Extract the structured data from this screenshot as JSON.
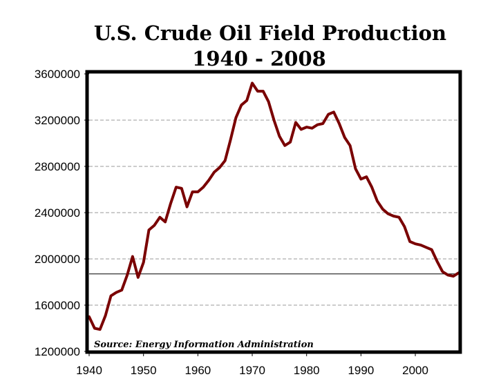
{
  "chart_data": {
    "type": "line",
    "title": "U.S. Crude Oil Field Production",
    "subtitle": "1940 - 2008",
    "xlabel": "",
    "ylabel": "",
    "xlim": [
      1940,
      2008
    ],
    "ylim": [
      1200000,
      3600000
    ],
    "x_ticks": [
      1940,
      1950,
      1960,
      1970,
      1980,
      1990,
      2000
    ],
    "x_tick_labels": [
      "1940",
      "1950",
      "1960",
      "1970",
      "1980",
      "1990",
      "2000"
    ],
    "y_ticks": [
      1200000,
      1600000,
      2000000,
      2400000,
      2800000,
      3200000,
      3600000
    ],
    "y_tick_labels": [
      "1200000",
      "1600000",
      "2000000",
      "2400000",
      "2800000",
      "3200000",
      "3600000"
    ],
    "grid": "horizontal dashed",
    "reference_line": {
      "value": 1870000
    },
    "annotation": "Source: Energy Information Administration",
    "series": [
      {
        "name": "U.S. Crude Oil Field Production",
        "color": "#7a0000",
        "x": [
          1940,
          1941,
          1942,
          1943,
          1944,
          1945,
          1946,
          1947,
          1948,
          1949,
          1950,
          1951,
          1952,
          1953,
          1954,
          1955,
          1956,
          1957,
          1958,
          1959,
          1960,
          1961,
          1962,
          1963,
          1964,
          1965,
          1966,
          1967,
          1968,
          1969,
          1970,
          1971,
          1972,
          1973,
          1974,
          1975,
          1976,
          1977,
          1978,
          1979,
          1980,
          1981,
          1982,
          1983,
          1984,
          1985,
          1986,
          1987,
          1988,
          1989,
          1990,
          1991,
          1992,
          1993,
          1994,
          1995,
          1996,
          1997,
          1998,
          1999,
          2000,
          2001,
          2002,
          2003,
          2004,
          2005,
          2006,
          2007,
          2008
        ],
        "values": [
          1500000,
          1400000,
          1390000,
          1510000,
          1680000,
          1710000,
          1730000,
          1860000,
          2020000,
          1840000,
          1970000,
          2250000,
          2290000,
          2360000,
          2320000,
          2480000,
          2620000,
          2610000,
          2450000,
          2580000,
          2580000,
          2620000,
          2680000,
          2750000,
          2790000,
          2850000,
          3030000,
          3220000,
          3330000,
          3370000,
          3520000,
          3450000,
          3450000,
          3360000,
          3200000,
          3060000,
          2980000,
          3010000,
          3180000,
          3120000,
          3140000,
          3130000,
          3160000,
          3170000,
          3250000,
          3270000,
          3170000,
          3050000,
          2980000,
          2780000,
          2690000,
          2710000,
          2620000,
          2500000,
          2430000,
          2390000,
          2370000,
          2360000,
          2280000,
          2150000,
          2130000,
          2120000,
          2100000,
          2080000,
          1980000,
          1890000,
          1860000,
          1850000,
          1880000
        ]
      }
    ]
  },
  "colors": {
    "line": "#7a0000",
    "grid": "#999999",
    "axes": "#000000",
    "reference_line": "#000000"
  }
}
